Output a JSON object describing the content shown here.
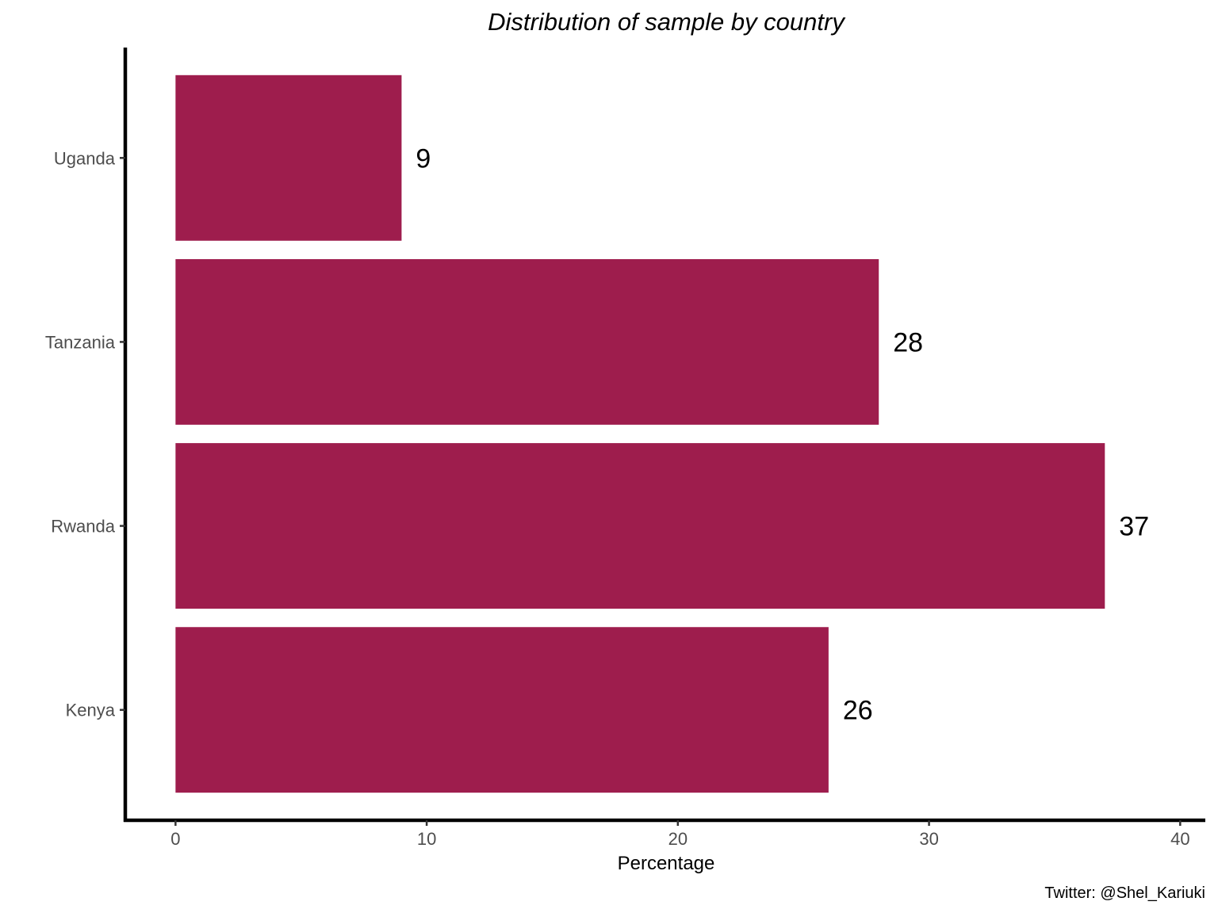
{
  "chart_data": {
    "type": "bar",
    "orientation": "horizontal",
    "title": "Distribution of sample by country",
    "xlabel": "Percentage",
    "ylabel": "",
    "caption": "Twitter: @Shel_Kariuki",
    "categories": [
      "Kenya",
      "Rwanda",
      "Tanzania",
      "Uganda"
    ],
    "values": [
      26,
      37,
      28,
      9
    ],
    "data_labels": [
      "26",
      "37",
      "28",
      "9"
    ],
    "xlim": [
      -2,
      41
    ],
    "xticks": [
      0,
      10,
      20,
      30,
      40
    ],
    "bar_color": "#9e1d4d",
    "grid": false,
    "legend": "none"
  }
}
